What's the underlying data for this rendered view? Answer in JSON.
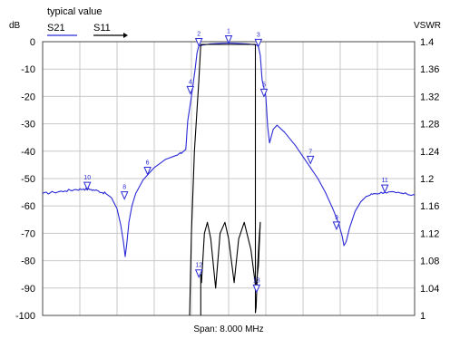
{
  "chart_data": {
    "type": "line",
    "title": "typical value",
    "xlabel": "Span: 8.000 MHz",
    "ylabel_left": "dB",
    "ylabel_right": "VSWR",
    "x_ticks_count": 11,
    "ylim_left": [
      -100,
      0
    ],
    "ylim_right": [
      1,
      1.4
    ],
    "yticks_left": [
      "0",
      "-10",
      "-20",
      "-30",
      "-40",
      "-50",
      "-60",
      "-70",
      "-80",
      "-90",
      "-100"
    ],
    "yticks_right": [
      "1.4",
      "1.36",
      "1.32",
      "1.28",
      "1.24",
      "1.2",
      "1.16",
      "1.12",
      "1.08",
      "1.04",
      "1"
    ],
    "grid": true,
    "legend_position": "top-left",
    "series": [
      {
        "name": "S21",
        "color": "#2a2ad6",
        "axis": "left",
        "points": [
          [
            0,
            -55.5
          ],
          [
            0.3,
            -55
          ],
          [
            0.6,
            -54.5
          ],
          [
            0.9,
            -54
          ],
          [
            1.1,
            -53.8
          ],
          [
            1.3,
            -54
          ],
          [
            1.5,
            -54.5
          ],
          [
            1.7,
            -55.5
          ],
          [
            1.85,
            -57
          ],
          [
            2.0,
            -61
          ],
          [
            2.1,
            -67
          ],
          [
            2.17,
            -73
          ],
          [
            2.22,
            -78.5
          ],
          [
            2.26,
            -74
          ],
          [
            2.32,
            -66
          ],
          [
            2.4,
            -60
          ],
          [
            2.5,
            -55.5
          ],
          [
            2.7,
            -50.5
          ],
          [
            3.0,
            -46
          ],
          [
            3.3,
            -43
          ],
          [
            3.6,
            -41.5
          ],
          [
            3.75,
            -40.5
          ],
          [
            3.85,
            -39.3
          ],
          [
            3.9,
            -29
          ],
          [
            4.0,
            -20
          ],
          [
            4.1,
            -10
          ],
          [
            4.15,
            -4
          ],
          [
            4.2,
            -1.5
          ],
          [
            4.5,
            -0.8
          ],
          [
            4.8,
            -0.6
          ],
          [
            5.0,
            -0.5
          ],
          [
            5.2,
            -0.6
          ],
          [
            5.5,
            -0.8
          ],
          [
            5.75,
            -1.2
          ],
          [
            5.8,
            -1.8
          ],
          [
            5.85,
            -5
          ],
          [
            5.9,
            -14
          ],
          [
            6.0,
            -20
          ],
          [
            6.05,
            -31
          ],
          [
            6.1,
            -37
          ],
          [
            6.2,
            -32
          ],
          [
            6.3,
            -30.5
          ],
          [
            6.5,
            -33
          ],
          [
            6.8,
            -38
          ],
          [
            7.1,
            -44
          ],
          [
            7.4,
            -50
          ],
          [
            7.6,
            -55
          ],
          [
            7.8,
            -61
          ],
          [
            7.95,
            -66
          ],
          [
            8.05,
            -71
          ],
          [
            8.1,
            -74.5
          ],
          [
            8.16,
            -73
          ],
          [
            8.25,
            -68
          ],
          [
            8.4,
            -62
          ],
          [
            8.55,
            -58.5
          ],
          [
            8.7,
            -56.5
          ],
          [
            8.9,
            -55.5
          ],
          [
            9.2,
            -55
          ],
          [
            9.5,
            -55.2
          ],
          [
            9.8,
            -55.7
          ],
          [
            10.0,
            -56
          ]
        ]
      },
      {
        "name": "S11",
        "color": "#000000",
        "axis": "left",
        "points": [
          [
            3.95,
            -100
          ],
          [
            4.0,
            -70
          ],
          [
            4.08,
            -40
          ],
          [
            4.2,
            -14
          ],
          [
            4.25,
            -1
          ],
          [
            5.5,
            -1
          ],
          [
            5.72,
            -1
          ],
          [
            5.72,
            -99
          ],
          [
            5.74,
            -97
          ],
          [
            5.78,
            -82
          ],
          [
            5.82,
            -72
          ],
          [
            5.85,
            -66
          ],
          [
            5.8,
            -82
          ],
          [
            5.73,
            -90
          ],
          [
            5.6,
            -76
          ],
          [
            5.42,
            -66
          ],
          [
            5.27,
            -72
          ],
          [
            5.15,
            -88
          ],
          [
            5.0,
            -72
          ],
          [
            4.9,
            -66
          ],
          [
            4.77,
            -70
          ],
          [
            4.65,
            -90
          ],
          [
            4.52,
            -72
          ],
          [
            4.43,
            -66
          ],
          [
            4.35,
            -70
          ],
          [
            4.27,
            -88
          ],
          [
            4.25,
            -85
          ],
          [
            4.25,
            -100
          ]
        ]
      }
    ],
    "markers": [
      {
        "id": "1",
        "x": 5.0,
        "y": -0.5
      },
      {
        "id": "2",
        "x": 4.2,
        "y": -1.5
      },
      {
        "id": "3",
        "x": 5.8,
        "y": -1.8
      },
      {
        "id": "4",
        "x": 3.97,
        "y": -19
      },
      {
        "id": "5",
        "x": 5.95,
        "y": -20
      },
      {
        "id": "6",
        "x": 2.82,
        "y": -48.5
      },
      {
        "id": "7",
        "x": 7.2,
        "y": -44.5
      },
      {
        "id": "8",
        "x": 2.2,
        "y": -57.5
      },
      {
        "id": "9",
        "x": 7.9,
        "y": -68.5
      },
      {
        "id": "10",
        "x": 1.2,
        "y": -54
      },
      {
        "id": "11",
        "x": 9.2,
        "y": -55
      },
      {
        "id": "12",
        "x": 4.2,
        "y": -86
      },
      {
        "id": "13",
        "x": 5.75,
        "y": -91.5
      }
    ]
  }
}
